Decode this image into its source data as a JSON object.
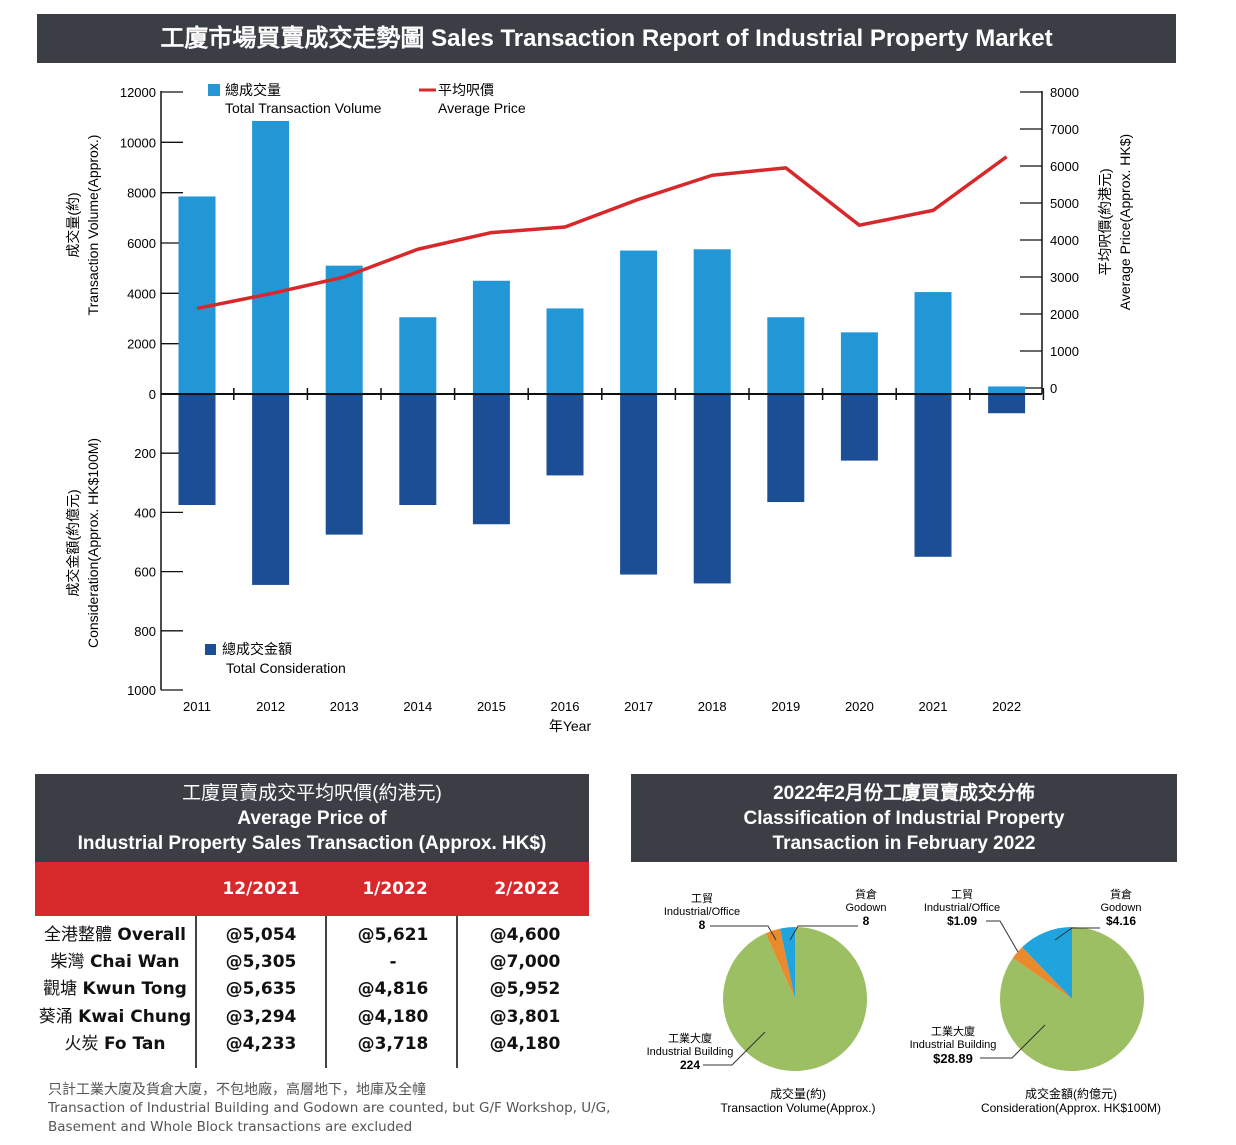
{
  "title": "工廈市場買賣成交走勢圖 Sales Transaction Report of Industrial Property Market",
  "chart_data": {
    "type": "bar",
    "categories": [
      "2011",
      "2012",
      "2013",
      "2014",
      "2015",
      "2016",
      "2017",
      "2018",
      "2019",
      "2020",
      "2021",
      "2022"
    ],
    "xlabel": "年Year",
    "series": [
      {
        "name": "總成交量 Total Transaction Volume",
        "axis": "left-upper",
        "color": "#2397d5",
        "values": [
          7850,
          10850,
          5100,
          3050,
          4500,
          3400,
          5700,
          5750,
          3050,
          2450,
          4050,
          300
        ]
      },
      {
        "name": "總成交金額 Total Consideration",
        "axis": "left-lower",
        "color": "#1c4e96",
        "values": [
          375,
          645,
          475,
          375,
          440,
          275,
          610,
          640,
          365,
          225,
          550,
          65
        ]
      },
      {
        "name": "平均呎價 Average Price",
        "type": "line",
        "axis": "right",
        "color": "#d7282b",
        "values": [
          2150,
          2550,
          3000,
          3750,
          4200,
          4350,
          5100,
          5750,
          5950,
          4400,
          4800,
          6250
        ]
      }
    ],
    "y_upper": {
      "label_zh": "成交量(約)",
      "label_en": "Transaction Volume(Approx.)",
      "ylim": [
        0,
        12000
      ],
      "ticks": [
        "12000",
        "10000",
        "8000",
        "6000",
        "4000",
        "2000",
        "0"
      ]
    },
    "y_lower": {
      "label_zh": "成交金額(約億元)",
      "label_en": "Consideration(Approx. HK$100M)",
      "ylim": [
        0,
        1000
      ],
      "ticks": [
        "200",
        "400",
        "600",
        "800",
        "1000"
      ]
    },
    "y_right": {
      "label_zh": "平均呎價(約港元)",
      "label_en": "Average Price(Approx. HK$)",
      "ylim": [
        0,
        8000
      ],
      "ticks": [
        "8000",
        "7000",
        "6000",
        "5000",
        "4000",
        "3000",
        "2000",
        "1000",
        "0"
      ]
    },
    "legend": {
      "volume": {
        "zh": "總成交量",
        "en": "Total Transaction Volume"
      },
      "price": {
        "zh": "平均呎價",
        "en": "Average Price"
      },
      "consideration": {
        "zh": "總成交金額",
        "en": "Total Consideration"
      }
    }
  },
  "avg_price": {
    "title_zh": "工廈買賣成交平均呎價(約港元)",
    "title_en1": "Average Price of",
    "title_en2": "Industrial Property Sales Transaction (Approx. HK$)",
    "columns": [
      "12/2021",
      "1/2022",
      "2/2022"
    ],
    "rows": [
      {
        "zh": "全港整體",
        "en": "Overall",
        "values": [
          "@5,054",
          "@5,621",
          "@4,600"
        ]
      },
      {
        "zh": "柴灣",
        "en": "Chai Wan",
        "values": [
          "@5,305",
          "-",
          "@7,000"
        ]
      },
      {
        "zh": "觀塘",
        "en": "Kwun Tong",
        "values": [
          "@5,635",
          "@4,816",
          "@5,952"
        ]
      },
      {
        "zh": "葵涌",
        "en": "Kwai Chung",
        "values": [
          "@3,294",
          "@4,180",
          "@3,801"
        ]
      },
      {
        "zh": "火炭",
        "en": "Fo Tan",
        "values": [
          "@4,233",
          "@3,718",
          "@4,180"
        ]
      }
    ],
    "note_zh": "只計工業大廈及貨倉大廈，不包地廠，高層地下，地庫及全幢",
    "note_en1": "Transaction of Industrial Building and Godown are counted, but G/F Workshop, U/G,",
    "note_en2": "Basement and Whole Block transactions are excluded"
  },
  "classification": {
    "title_zh": "2022年2月份工廈買賣成交分佈",
    "title_en1": "Classification of Industrial Property",
    "title_en2": "Transaction in February 2022",
    "volume_pie": {
      "caption_zh": "成交量(約)",
      "caption_en": "Transaction Volume(Approx.)",
      "slices": [
        {
          "zh": "工貿",
          "en": "Industrial/Office",
          "value": 8,
          "label": "8",
          "color": "#e98a2d"
        },
        {
          "zh": "貨倉",
          "en": "Godown",
          "value": 8,
          "label": "8",
          "color": "#1fa4dd"
        },
        {
          "zh": "工業大廈",
          "en": "Industrial Building",
          "value": 224,
          "label": "224",
          "color": "#9bbf62"
        }
      ]
    },
    "consideration_pie": {
      "caption_zh": "成交金額(約億元)",
      "caption_en": "Consideration(Approx. HK$100M)",
      "slices": [
        {
          "zh": "工貿",
          "en": "Industrial/Office",
          "value": 1.09,
          "label": "$1.09",
          "color": "#e98a2d"
        },
        {
          "zh": "貨倉",
          "en": "Godown",
          "value": 4.16,
          "label": "$4.16",
          "color": "#1fa4dd"
        },
        {
          "zh": "工業大廈",
          "en": "Industrial Building",
          "value": 28.89,
          "label": "$28.89",
          "color": "#9bbf62"
        }
      ]
    }
  }
}
